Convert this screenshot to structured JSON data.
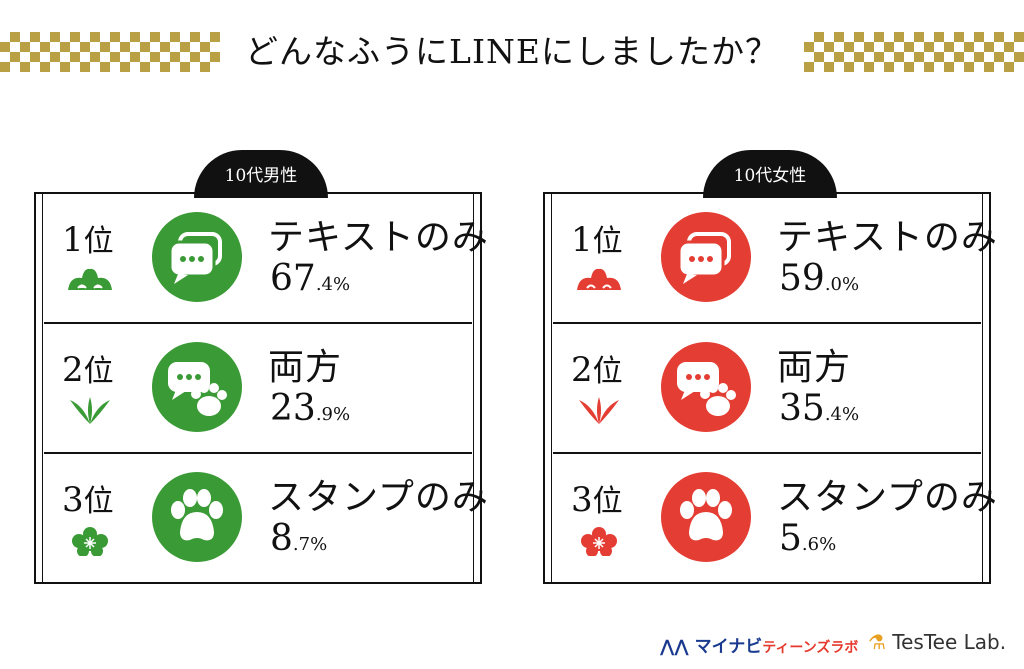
{
  "title": "どんなふうにLINEにしましたか？",
  "colors": {
    "gold": "#b9a044",
    "male": "#3a9a35",
    "female": "#e43d33"
  },
  "panels": [
    {
      "tab": "10代男性",
      "rows": [
        {
          "rank": "1",
          "rank_suffix": "位",
          "emblem": "pine-icon",
          "icon": "chat-bubbles-icon",
          "label": "テキストのみ",
          "pct_int": "67",
          "pct_dec": ".4%"
        },
        {
          "rank": "2",
          "rank_suffix": "位",
          "emblem": "bamboo-icon",
          "icon": "chat-paw-icon",
          "label": "両方",
          "pct_int": "23",
          "pct_dec": ".9%"
        },
        {
          "rank": "3",
          "rank_suffix": "位",
          "emblem": "plum-icon",
          "icon": "paw-icon",
          "label": "スタンプのみ",
          "pct_int": "8",
          "pct_dec": ".7%"
        }
      ]
    },
    {
      "tab": "10代女性",
      "rows": [
        {
          "rank": "1",
          "rank_suffix": "位",
          "emblem": "pine-icon",
          "icon": "chat-bubbles-icon",
          "label": "テキストのみ",
          "pct_int": "59",
          "pct_dec": ".0%"
        },
        {
          "rank": "2",
          "rank_suffix": "位",
          "emblem": "bamboo-icon",
          "icon": "chat-paw-icon",
          "label": "両方",
          "pct_int": "35",
          "pct_dec": ".4%"
        },
        {
          "rank": "3",
          "rank_suffix": "位",
          "emblem": "plum-icon",
          "icon": "paw-icon",
          "label": "スタンプのみ",
          "pct_int": "5",
          "pct_dec": ".6%"
        }
      ]
    }
  ],
  "footer": {
    "mynavi_main": "マイナビ",
    "mynavi_sub": "ティーンズラボ",
    "testee": "TesTee Lab."
  }
}
